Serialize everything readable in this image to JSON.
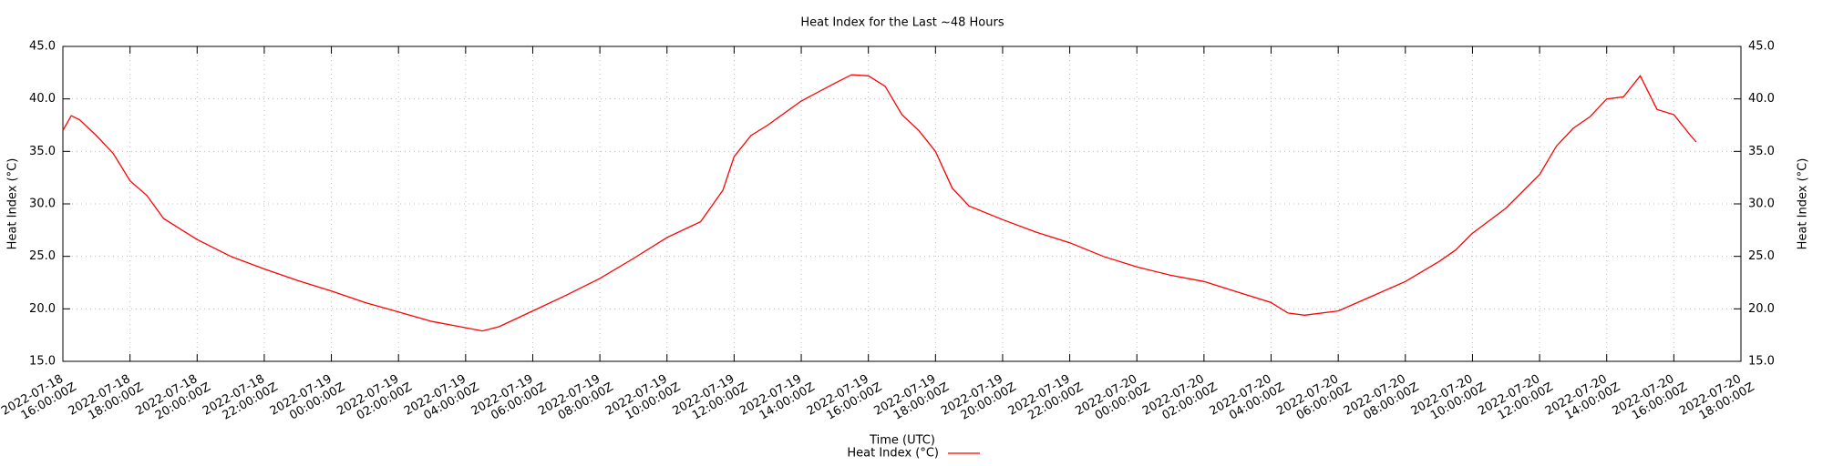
{
  "chart_data": {
    "type": "line",
    "title": "Heat Index for the Last ~48 Hours",
    "xlabel": "Time (UTC)",
    "ylabel": "Heat Index (°C)",
    "y2label": "Heat Index (°C)",
    "grid": true,
    "legend": "bottom",
    "xlim": [
      "2022-07-18T16:00:00Z",
      "2022-07-20T18:00:00Z"
    ],
    "xticks": [
      {
        "value": "2022-07-18T16:00:00Z",
        "label": "2022-07-18 16:00:00Z"
      },
      {
        "value": "2022-07-18T18:00:00Z",
        "label": "2022-07-18 18:00:00Z"
      },
      {
        "value": "2022-07-18T20:00:00Z",
        "label": "2022-07-18 20:00:00Z"
      },
      {
        "value": "2022-07-18T22:00:00Z",
        "label": "2022-07-18 22:00:00Z"
      },
      {
        "value": "2022-07-19T00:00:00Z",
        "label": "2022-07-19 00:00:00Z"
      },
      {
        "value": "2022-07-19T02:00:00Z",
        "label": "2022-07-19 02:00:00Z"
      },
      {
        "value": "2022-07-19T04:00:00Z",
        "label": "2022-07-19 04:00:00Z"
      },
      {
        "value": "2022-07-19T06:00:00Z",
        "label": "2022-07-19 06:00:00Z"
      },
      {
        "value": "2022-07-19T08:00:00Z",
        "label": "2022-07-19 08:00:00Z"
      },
      {
        "value": "2022-07-19T10:00:00Z",
        "label": "2022-07-19 10:00:00Z"
      },
      {
        "value": "2022-07-19T12:00:00Z",
        "label": "2022-07-19 12:00:00Z"
      },
      {
        "value": "2022-07-19T14:00:00Z",
        "label": "2022-07-19 14:00:00Z"
      },
      {
        "value": "2022-07-19T16:00:00Z",
        "label": "2022-07-19 16:00:00Z"
      },
      {
        "value": "2022-07-19T18:00:00Z",
        "label": "2022-07-19 18:00:00Z"
      },
      {
        "value": "2022-07-19T20:00:00Z",
        "label": "2022-07-19 20:00:00Z"
      },
      {
        "value": "2022-07-19T22:00:00Z",
        "label": "2022-07-19 22:00:00Z"
      },
      {
        "value": "2022-07-20T00:00:00Z",
        "label": "2022-07-20 00:00:00Z"
      },
      {
        "value": "2022-07-20T02:00:00Z",
        "label": "2022-07-20 02:00:00Z"
      },
      {
        "value": "2022-07-20T04:00:00Z",
        "label": "2022-07-20 04:00:00Z"
      },
      {
        "value": "2022-07-20T06:00:00Z",
        "label": "2022-07-20 06:00:00Z"
      },
      {
        "value": "2022-07-20T08:00:00Z",
        "label": "2022-07-20 08:00:00Z"
      },
      {
        "value": "2022-07-20T10:00:00Z",
        "label": "2022-07-20 10:00:00Z"
      },
      {
        "value": "2022-07-20T12:00:00Z",
        "label": "2022-07-20 12:00:00Z"
      },
      {
        "value": "2022-07-20T14:00:00Z",
        "label": "2022-07-20 14:00:00Z"
      },
      {
        "value": "2022-07-20T16:00:00Z",
        "label": "2022-07-20 16:00:00Z"
      },
      {
        "value": "2022-07-20T18:00:00Z",
        "label": "2022-07-20 18:00:00Z"
      }
    ],
    "ylim": [
      15,
      45
    ],
    "yticks": [
      {
        "value": 15,
        "label": "15.0"
      },
      {
        "value": 20,
        "label": "20.0"
      },
      {
        "value": 25,
        "label": "25.0"
      },
      {
        "value": 30,
        "label": "30.0"
      },
      {
        "value": 35,
        "label": "35.0"
      },
      {
        "value": 40,
        "label": "40.0"
      },
      {
        "value": 45,
        "label": "45.0"
      }
    ],
    "y2lim": [
      15,
      45
    ],
    "y2ticks": [
      {
        "value": 15,
        "label": "15.0"
      },
      {
        "value": 20,
        "label": "20.0"
      },
      {
        "value": 25,
        "label": "25.0"
      },
      {
        "value": 30,
        "label": "30.0"
      },
      {
        "value": 35,
        "label": "35.0"
      },
      {
        "value": 40,
        "label": "40.0"
      },
      {
        "value": 45,
        "label": "45.0"
      }
    ],
    "x": [
      "2022-07-18T16:00:00Z",
      "2022-07-18T16:15:00Z",
      "2022-07-18T16:30:00Z",
      "2022-07-18T17:00:00Z",
      "2022-07-18T17:30:00Z",
      "2022-07-18T18:00:00Z",
      "2022-07-18T18:30:00Z",
      "2022-07-18T19:00:00Z",
      "2022-07-18T19:30:00Z",
      "2022-07-18T20:00:00Z",
      "2022-07-18T21:00:00Z",
      "2022-07-18T22:00:00Z",
      "2022-07-18T23:00:00Z",
      "2022-07-19T00:00:00Z",
      "2022-07-19T01:00:00Z",
      "2022-07-19T02:00:00Z",
      "2022-07-19T03:00:00Z",
      "2022-07-19T04:00:00Z",
      "2022-07-19T04:30:00Z",
      "2022-07-19T05:00:00Z",
      "2022-07-19T06:00:00Z",
      "2022-07-19T07:00:00Z",
      "2022-07-19T08:00:00Z",
      "2022-07-19T09:00:00Z",
      "2022-07-19T10:00:00Z",
      "2022-07-19T11:00:00Z",
      "2022-07-19T11:40:00Z",
      "2022-07-19T12:00:00Z",
      "2022-07-19T12:30:00Z",
      "2022-07-19T13:00:00Z",
      "2022-07-19T14:00:00Z",
      "2022-07-19T15:00:00Z",
      "2022-07-19T15:30:00Z",
      "2022-07-19T16:00:00Z",
      "2022-07-19T16:30:00Z",
      "2022-07-19T17:00:00Z",
      "2022-07-19T17:30:00Z",
      "2022-07-19T18:00:00Z",
      "2022-07-19T18:30:00Z",
      "2022-07-19T19:00:00Z",
      "2022-07-19T20:00:00Z",
      "2022-07-19T21:00:00Z",
      "2022-07-19T22:00:00Z",
      "2022-07-19T23:00:00Z",
      "2022-07-20T00:00:00Z",
      "2022-07-20T01:00:00Z",
      "2022-07-20T02:00:00Z",
      "2022-07-20T03:00:00Z",
      "2022-07-20T04:00:00Z",
      "2022-07-20T04:30:00Z",
      "2022-07-20T05:00:00Z",
      "2022-07-20T06:00:00Z",
      "2022-07-20T07:00:00Z",
      "2022-07-20T08:00:00Z",
      "2022-07-20T09:00:00Z",
      "2022-07-20T09:30:00Z",
      "2022-07-20T10:00:00Z",
      "2022-07-20T11:00:00Z",
      "2022-07-20T12:00:00Z",
      "2022-07-20T12:30:00Z",
      "2022-07-20T13:00:00Z",
      "2022-07-20T13:30:00Z",
      "2022-07-20T14:00:00Z",
      "2022-07-20T14:30:00Z",
      "2022-07-20T15:00:00Z",
      "2022-07-20T15:30:00Z",
      "2022-07-20T16:00:00Z",
      "2022-07-20T16:30:00Z",
      "2022-07-20T16:40:00Z"
    ],
    "series": [
      {
        "name": "Heat Index (°C)",
        "color": "#ff0000",
        "values": [
          37.0,
          38.4,
          38.0,
          36.5,
          34.8,
          32.2,
          30.8,
          28.6,
          27.6,
          26.6,
          25.0,
          23.8,
          22.7,
          21.7,
          20.6,
          19.7,
          18.8,
          18.2,
          17.9,
          18.3,
          19.8,
          21.3,
          22.9,
          24.8,
          26.8,
          28.3,
          31.3,
          34.5,
          36.5,
          37.5,
          39.8,
          41.5,
          42.3,
          42.2,
          41.2,
          38.5,
          37.0,
          35.0,
          31.5,
          29.8,
          28.5,
          27.3,
          26.3,
          25.0,
          24.0,
          23.2,
          22.6,
          21.6,
          20.6,
          19.6,
          19.4,
          19.8,
          21.2,
          22.6,
          24.5,
          25.6,
          27.2,
          29.6,
          32.8,
          35.5,
          37.2,
          38.3,
          40.0,
          40.2,
          42.2,
          39.0,
          38.5,
          36.5,
          35.9
        ]
      }
    ]
  }
}
